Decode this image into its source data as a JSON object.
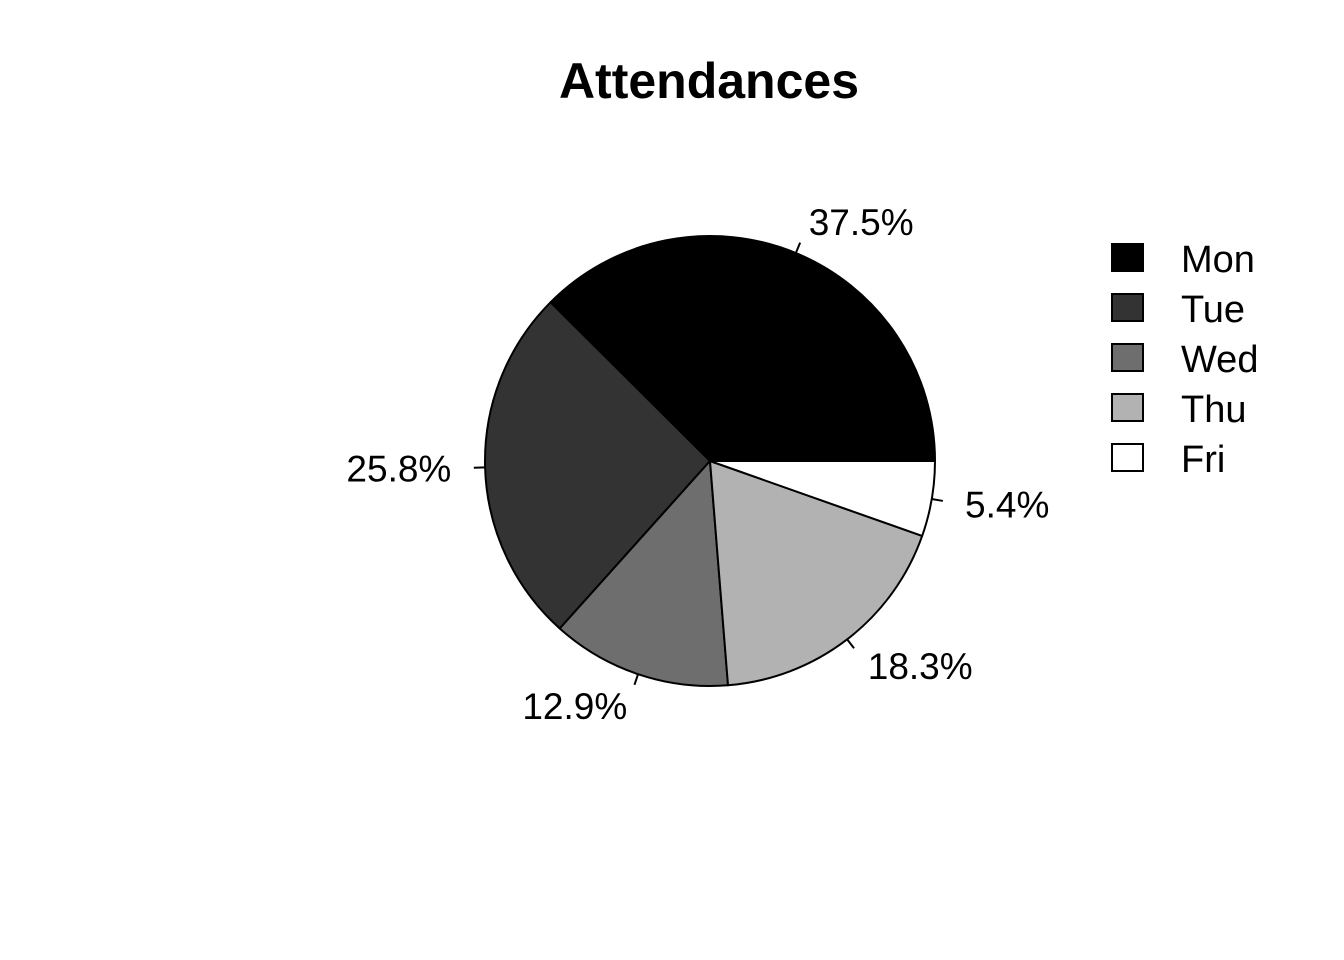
{
  "chart_data": {
    "type": "pie",
    "title": "Attendances",
    "categories": [
      "Mon",
      "Tue",
      "Wed",
      "Thu",
      "Fri"
    ],
    "values": [
      37.5,
      25.8,
      12.9,
      18.3,
      5.4
    ],
    "labels": [
      "37.5%",
      "25.8%",
      "12.9%",
      "18.3%",
      "5.4%"
    ],
    "colors": [
      "#000000",
      "#333333",
      "#6e6e6e",
      "#b2b2b2",
      "#ffffff"
    ],
    "direction": "counterclockwise",
    "start_angle_deg": 0,
    "legend_position": "right"
  }
}
